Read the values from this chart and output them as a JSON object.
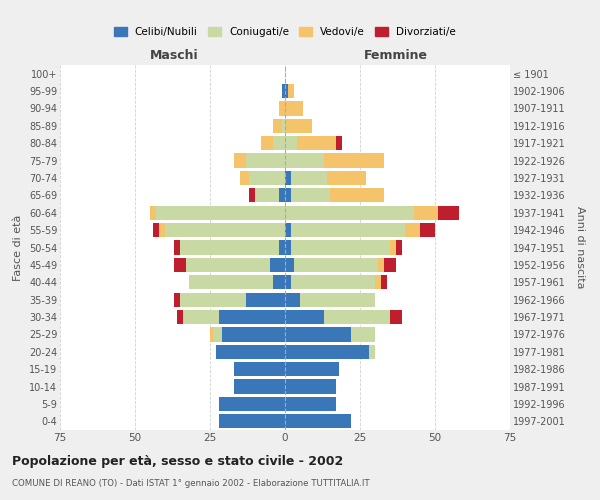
{
  "age_groups": [
    "0-4",
    "5-9",
    "10-14",
    "15-19",
    "20-24",
    "25-29",
    "30-34",
    "35-39",
    "40-44",
    "45-49",
    "50-54",
    "55-59",
    "60-64",
    "65-69",
    "70-74",
    "75-79",
    "80-84",
    "85-89",
    "90-94",
    "95-99",
    "100+"
  ],
  "birth_years": [
    "1997-2001",
    "1992-1996",
    "1987-1991",
    "1982-1986",
    "1977-1981",
    "1972-1976",
    "1967-1971",
    "1962-1966",
    "1957-1961",
    "1952-1956",
    "1947-1951",
    "1942-1946",
    "1937-1941",
    "1932-1936",
    "1927-1931",
    "1922-1926",
    "1917-1921",
    "1912-1916",
    "1907-1911",
    "1902-1906",
    "≤ 1901"
  ],
  "maschi": {
    "celibi": [
      22,
      22,
      17,
      17,
      23,
      21,
      22,
      13,
      4,
      5,
      2,
      0,
      0,
      2,
      0,
      0,
      0,
      0,
      0,
      1,
      0
    ],
    "coniugati": [
      0,
      0,
      0,
      0,
      0,
      3,
      12,
      22,
      28,
      28,
      33,
      40,
      43,
      8,
      12,
      13,
      4,
      1,
      0,
      0,
      0
    ],
    "vedovi": [
      0,
      0,
      0,
      0,
      0,
      1,
      0,
      0,
      0,
      0,
      0,
      2,
      2,
      0,
      3,
      4,
      4,
      3,
      2,
      0,
      0
    ],
    "divorziati": [
      0,
      0,
      0,
      0,
      0,
      0,
      2,
      2,
      0,
      4,
      2,
      2,
      0,
      2,
      0,
      0,
      0,
      0,
      0,
      0,
      0
    ]
  },
  "femmine": {
    "nubili": [
      22,
      17,
      17,
      18,
      28,
      22,
      13,
      5,
      2,
      3,
      2,
      2,
      0,
      2,
      2,
      0,
      0,
      0,
      0,
      1,
      0
    ],
    "coniugate": [
      0,
      0,
      0,
      0,
      2,
      8,
      22,
      25,
      28,
      28,
      33,
      38,
      43,
      13,
      12,
      13,
      4,
      0,
      0,
      0,
      0
    ],
    "vedove": [
      0,
      0,
      0,
      0,
      0,
      0,
      0,
      0,
      2,
      2,
      2,
      5,
      8,
      18,
      13,
      20,
      13,
      9,
      6,
      2,
      0
    ],
    "divorziate": [
      0,
      0,
      0,
      0,
      0,
      0,
      4,
      0,
      2,
      4,
      2,
      5,
      7,
      0,
      0,
      0,
      2,
      0,
      0,
      0,
      0
    ]
  },
  "colors": {
    "celibi": "#3a77b8",
    "coniugati": "#c8d9a3",
    "vedovi": "#f5c36a",
    "divorziati": "#bf1e2e"
  },
  "xlim": 75,
  "title": "Popolazione per età, sesso e stato civile - 2002",
  "subtitle": "COMUNE DI REANO (TO) - Dati ISTAT 1° gennaio 2002 - Elaborazione TUTTITALIA.IT",
  "ylabel": "Fasce di età",
  "ylabel2": "Anni di nascita",
  "xlabel_maschi": "Maschi",
  "xlabel_femmine": "Femmine",
  "legend": [
    "Celibi/Nubili",
    "Coniugati/e",
    "Vedovi/e",
    "Divorziati/e"
  ],
  "bg_color": "#efefef",
  "plot_bg": "#ffffff",
  "grid_color": "#cccccc"
}
